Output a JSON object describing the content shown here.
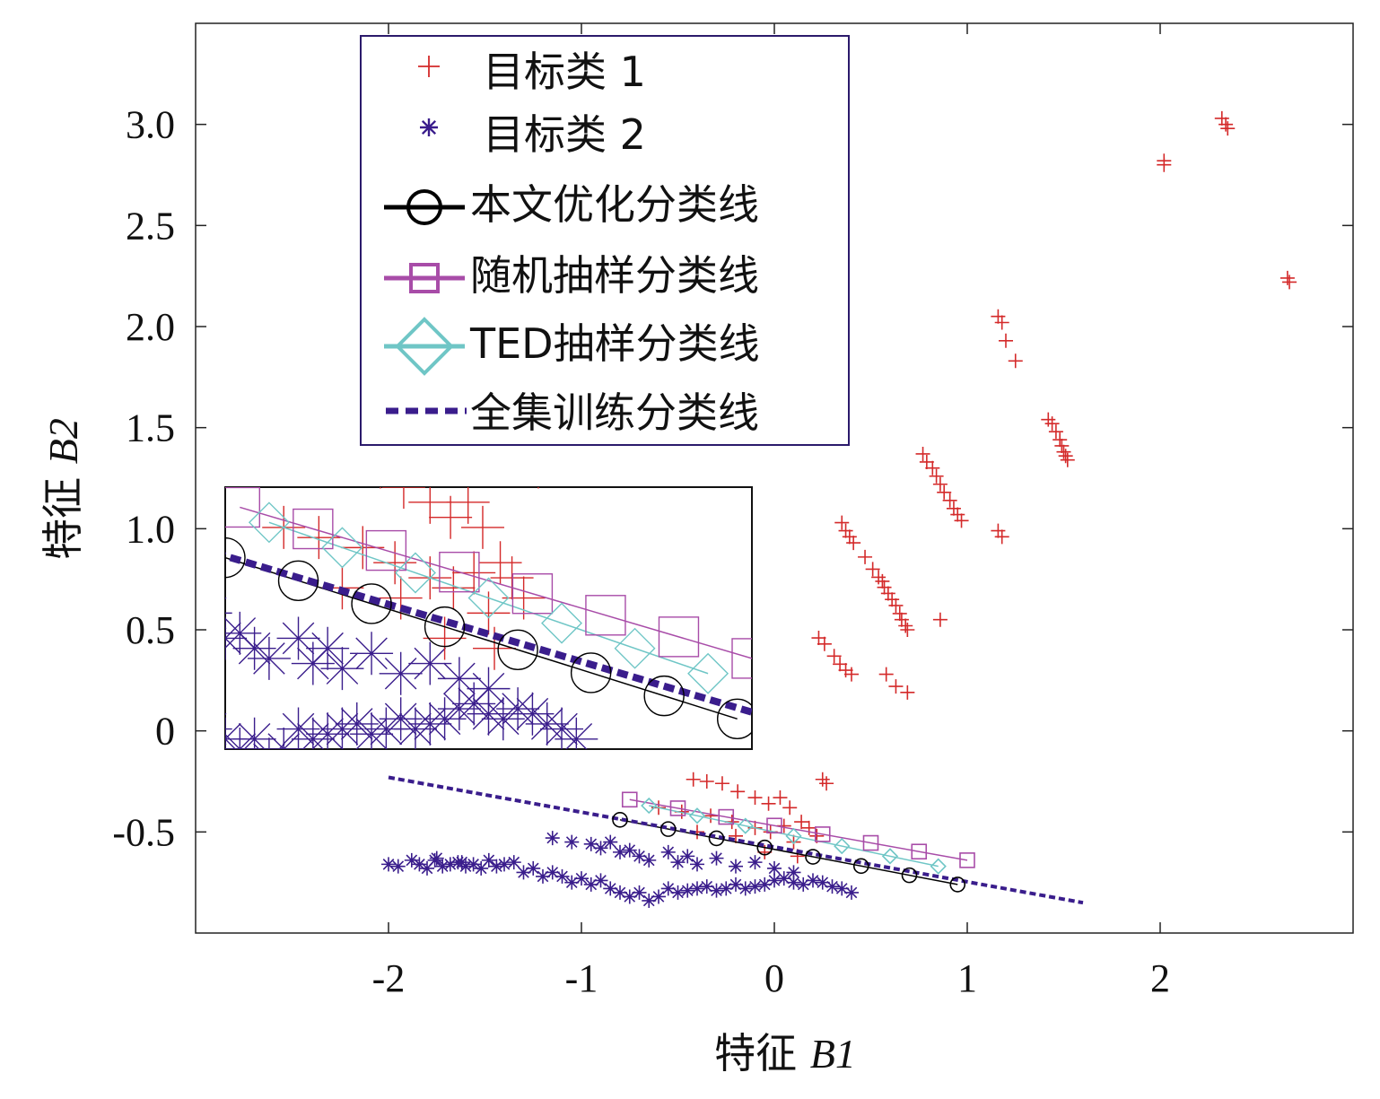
{
  "chart_data": {
    "type": "scatter",
    "xlabel_prefix": "特征",
    "xlabel_var": "B1",
    "ylabel_prefix": "特征",
    "ylabel_var": "B2",
    "xlim": [
      -3,
      3
    ],
    "ylim": [
      -1.0,
      3.5
    ],
    "x_ticks": [
      {
        "value": -2,
        "label": "-2"
      },
      {
        "value": -1,
        "label": "-1"
      },
      {
        "value": 0,
        "label": "0"
      },
      {
        "value": 1,
        "label": "1"
      },
      {
        "value": 2,
        "label": "2"
      }
    ],
    "y_ticks": [
      {
        "value": -0.5,
        "label": "-0.5"
      },
      {
        "value": 0,
        "label": "0"
      },
      {
        "value": 0.5,
        "label": "0.5"
      },
      {
        "value": 1.0,
        "label": "1.0"
      },
      {
        "value": 1.5,
        "label": "1.5"
      },
      {
        "value": 2.0,
        "label": "2.0"
      },
      {
        "value": 2.5,
        "label": "2.5"
      },
      {
        "value": 3.0,
        "label": "3.0"
      }
    ],
    "legend": [
      {
        "key": "class1",
        "label": "目标类 1",
        "marker": "plus",
        "color": "#d42a2a"
      },
      {
        "key": "class2",
        "label": "目标类 2",
        "marker": "asterisk",
        "color": "#3a1d8c"
      },
      {
        "key": "ours",
        "label": "本文优化分类线",
        "marker": "circle",
        "color": "#000000"
      },
      {
        "key": "random",
        "label": "随机抽样分类线",
        "marker": "square",
        "color": "#a84ca8"
      },
      {
        "key": "ted",
        "label": "TED抽样分类线",
        "marker": "diamond",
        "color": "#6fc6c6"
      },
      {
        "key": "full",
        "label": "全集训练分类线",
        "marker": "dashed",
        "color": "#3a1d8c"
      }
    ],
    "series": [
      {
        "key": "class1",
        "type": "scatter",
        "points": [
          [
            2.32,
            3.03
          ],
          [
            2.34,
            3.0
          ],
          [
            2.35,
            2.98
          ],
          [
            2.02,
            2.82
          ],
          [
            2.02,
            2.8
          ],
          [
            2.66,
            2.24
          ],
          [
            2.67,
            2.22
          ],
          [
            1.16,
            2.05
          ],
          [
            1.18,
            2.02
          ],
          [
            1.2,
            1.93
          ],
          [
            1.25,
            1.83
          ],
          [
            1.42,
            1.54
          ],
          [
            1.44,
            1.52
          ],
          [
            1.46,
            1.48
          ],
          [
            1.48,
            1.44
          ],
          [
            1.49,
            1.41
          ],
          [
            1.5,
            1.38
          ],
          [
            1.51,
            1.36
          ],
          [
            1.52,
            1.34
          ],
          [
            0.77,
            1.37
          ],
          [
            0.79,
            1.33
          ],
          [
            0.82,
            1.3
          ],
          [
            0.84,
            1.26
          ],
          [
            0.86,
            1.22
          ],
          [
            0.88,
            1.18
          ],
          [
            0.91,
            1.14
          ],
          [
            0.93,
            1.1
          ],
          [
            0.95,
            1.07
          ],
          [
            0.97,
            1.04
          ],
          [
            1.16,
            0.99
          ],
          [
            1.18,
            0.96
          ],
          [
            0.35,
            1.03
          ],
          [
            0.37,
            0.99
          ],
          [
            0.39,
            0.96
          ],
          [
            0.41,
            0.93
          ],
          [
            0.47,
            0.86
          ],
          [
            0.51,
            0.8
          ],
          [
            0.54,
            0.76
          ],
          [
            0.56,
            0.74
          ],
          [
            0.57,
            0.71
          ],
          [
            0.59,
            0.68
          ],
          [
            0.61,
            0.65
          ],
          [
            0.63,
            0.62
          ],
          [
            0.65,
            0.58
          ],
          [
            0.66,
            0.55
          ],
          [
            0.68,
            0.52
          ],
          [
            0.69,
            0.5
          ],
          [
            0.86,
            0.55
          ],
          [
            0.23,
            0.46
          ],
          [
            0.26,
            0.43
          ],
          [
            0.31,
            0.37
          ],
          [
            0.34,
            0.33
          ],
          [
            0.37,
            0.3
          ],
          [
            0.4,
            0.28
          ],
          [
            0.58,
            0.28
          ],
          [
            0.63,
            0.22
          ],
          [
            0.69,
            0.19
          ],
          [
            0.25,
            -0.24
          ],
          [
            0.27,
            -0.26
          ],
          [
            -0.42,
            -0.24
          ],
          [
            -0.35,
            -0.25
          ],
          [
            -0.27,
            -0.26
          ],
          [
            -0.19,
            -0.3
          ],
          [
            -0.1,
            -0.33
          ],
          [
            -0.03,
            -0.36
          ],
          [
            0.03,
            -0.33
          ],
          [
            0.08,
            -0.38
          ],
          [
            -0.6,
            -0.38
          ],
          [
            -0.48,
            -0.4
          ],
          [
            -0.33,
            -0.42
          ],
          [
            -0.22,
            -0.45
          ],
          [
            -0.1,
            -0.48
          ],
          [
            -0.02,
            -0.5
          ],
          [
            0.05,
            -0.47
          ],
          [
            0.14,
            -0.45
          ],
          [
            0.18,
            -0.48
          ],
          [
            -0.4,
            -0.5
          ],
          [
            -0.2,
            -0.52
          ],
          [
            0.1,
            -0.55
          ],
          [
            0.22,
            -0.52
          ],
          [
            -0.05,
            -0.6
          ],
          [
            0.12,
            -0.62
          ]
        ]
      },
      {
        "key": "class2",
        "type": "scatter",
        "points": [
          [
            -2.0,
            -0.66
          ],
          [
            -1.95,
            -0.67
          ],
          [
            -1.88,
            -0.64
          ],
          [
            -1.84,
            -0.66
          ],
          [
            -1.8,
            -0.68
          ],
          [
            -1.76,
            -0.64
          ],
          [
            -1.72,
            -0.67
          ],
          [
            -1.68,
            -0.66
          ],
          [
            -1.64,
            -0.65
          ],
          [
            -1.6,
            -0.67
          ],
          [
            -1.56,
            -0.66
          ],
          [
            -1.52,
            -0.68
          ],
          [
            -1.48,
            -0.64
          ],
          [
            -1.44,
            -0.67
          ],
          [
            -1.4,
            -0.66
          ],
          [
            -1.35,
            -0.65
          ],
          [
            -1.3,
            -0.7
          ],
          [
            -1.25,
            -0.68
          ],
          [
            -1.2,
            -0.72
          ],
          [
            -1.15,
            -0.7
          ],
          [
            -1.1,
            -0.72
          ],
          [
            -1.05,
            -0.75
          ],
          [
            -1.0,
            -0.73
          ],
          [
            -0.95,
            -0.76
          ],
          [
            -0.9,
            -0.74
          ],
          [
            -0.85,
            -0.78
          ],
          [
            -0.8,
            -0.8
          ],
          [
            -0.75,
            -0.82
          ],
          [
            -0.7,
            -0.8
          ],
          [
            -0.65,
            -0.84
          ],
          [
            -0.6,
            -0.82
          ],
          [
            -0.55,
            -0.78
          ],
          [
            -0.5,
            -0.8
          ],
          [
            -0.45,
            -0.79
          ],
          [
            -0.4,
            -0.78
          ],
          [
            -0.35,
            -0.77
          ],
          [
            -0.3,
            -0.79
          ],
          [
            -0.25,
            -0.78
          ],
          [
            -0.2,
            -0.76
          ],
          [
            -0.15,
            -0.78
          ],
          [
            -0.1,
            -0.77
          ],
          [
            -0.05,
            -0.76
          ],
          [
            0.0,
            -0.74
          ],
          [
            0.05,
            -0.73
          ],
          [
            0.1,
            -0.75
          ],
          [
            0.15,
            -0.76
          ],
          [
            0.2,
            -0.74
          ],
          [
            0.25,
            -0.75
          ],
          [
            0.3,
            -0.77
          ],
          [
            0.35,
            -0.78
          ],
          [
            0.4,
            -0.8
          ],
          [
            -1.15,
            -0.53
          ],
          [
            -1.05,
            -0.55
          ],
          [
            -0.95,
            -0.56
          ],
          [
            -0.9,
            -0.58
          ],
          [
            -0.85,
            -0.55
          ],
          [
            -0.8,
            -0.6
          ],
          [
            -0.75,
            -0.59
          ],
          [
            -0.7,
            -0.62
          ],
          [
            -0.65,
            -0.64
          ],
          [
            -0.55,
            -0.6
          ],
          [
            -0.5,
            -0.65
          ],
          [
            -0.45,
            -0.62
          ],
          [
            -0.4,
            -0.66
          ],
          [
            -0.3,
            -0.63
          ],
          [
            -0.2,
            -0.67
          ],
          [
            -0.1,
            -0.65
          ],
          [
            0.0,
            -0.68
          ],
          [
            0.1,
            -0.7
          ],
          [
            -1.75,
            -0.63
          ],
          [
            -1.62,
            -0.65
          ]
        ]
      },
      {
        "key": "full",
        "type": "line",
        "points": [
          [
            -2.0,
            -0.23
          ],
          [
            1.6,
            -0.85
          ]
        ]
      },
      {
        "key": "ours",
        "type": "line",
        "points": [
          [
            -0.8,
            -0.44
          ],
          [
            0.95,
            -0.76
          ]
        ],
        "markers_x": [
          -0.8,
          -0.55,
          -0.3,
          -0.05,
          0.2,
          0.45,
          0.7,
          0.95
        ]
      },
      {
        "key": "random",
        "type": "line",
        "points": [
          [
            -0.75,
            -0.34
          ],
          [
            1.0,
            -0.64
          ]
        ],
        "markers_x": [
          -0.75,
          -0.5,
          -0.25,
          0.0,
          0.25,
          0.5,
          0.75,
          1.0
        ]
      },
      {
        "key": "ted",
        "type": "line",
        "points": [
          [
            -0.65,
            -0.37
          ],
          [
            0.85,
            -0.67
          ]
        ],
        "markers_x": [
          -0.65,
          -0.4,
          -0.15,
          0.1,
          0.35,
          0.6,
          0.85
        ]
      }
    ],
    "inset": {
      "xlim": [
        -0.8,
        1.0
      ],
      "ylim": [
        -0.82,
        -0.3
      ]
    }
  }
}
